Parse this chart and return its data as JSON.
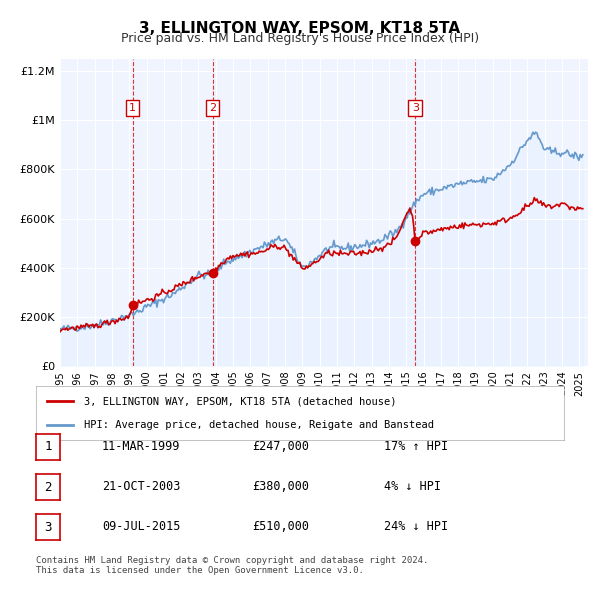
{
  "title": "3, ELLINGTON WAY, EPSOM, KT18 5TA",
  "subtitle": "Price paid vs. HM Land Registry's House Price Index (HPI)",
  "xlabel": "",
  "ylabel": "",
  "bg_color": "#ffffff",
  "plot_bg_color": "#f0f4ff",
  "grid_color": "#ffffff",
  "sale_color": "#cc0000",
  "hpi_color": "#6699cc",
  "hpi_fill_color": "#ddeeff",
  "dashed_line_color": "#dd0000",
  "sale_marker_color": "#cc0000",
  "ylim": [
    0,
    1250000
  ],
  "yticks": [
    0,
    200000,
    400000,
    600000,
    800000,
    1000000,
    1200000
  ],
  "ytick_labels": [
    "£0",
    "£200K",
    "£400K",
    "£600K",
    "£800K",
    "£1M",
    "£1.2M"
  ],
  "xlim_start": 1995,
  "xlim_end": 2025.5,
  "sales": [
    {
      "date_num": 1999.19,
      "price": 247000,
      "label": "1"
    },
    {
      "date_num": 2003.81,
      "price": 380000,
      "label": "2"
    },
    {
      "date_num": 2015.52,
      "price": 510000,
      "label": "3"
    }
  ],
  "vline_dates": [
    1999.19,
    2003.81,
    2015.52
  ],
  "legend_sale_label": "3, ELLINGTON WAY, EPSOM, KT18 5TA (detached house)",
  "legend_hpi_label": "HPI: Average price, detached house, Reigate and Banstead",
  "table_rows": [
    {
      "num": "1",
      "date": "11-MAR-1999",
      "price": "£247,000",
      "hpi": "17% ↑ HPI"
    },
    {
      "num": "2",
      "date": "21-OCT-2003",
      "price": "£380,000",
      "hpi": "4% ↓ HPI"
    },
    {
      "num": "3",
      "date": "09-JUL-2015",
      "price": "£510,000",
      "hpi": "24% ↓ HPI"
    }
  ],
  "footnote": "Contains HM Land Registry data © Crown copyright and database right 2024.\nThis data is licensed under the Open Government Licence v3.0."
}
